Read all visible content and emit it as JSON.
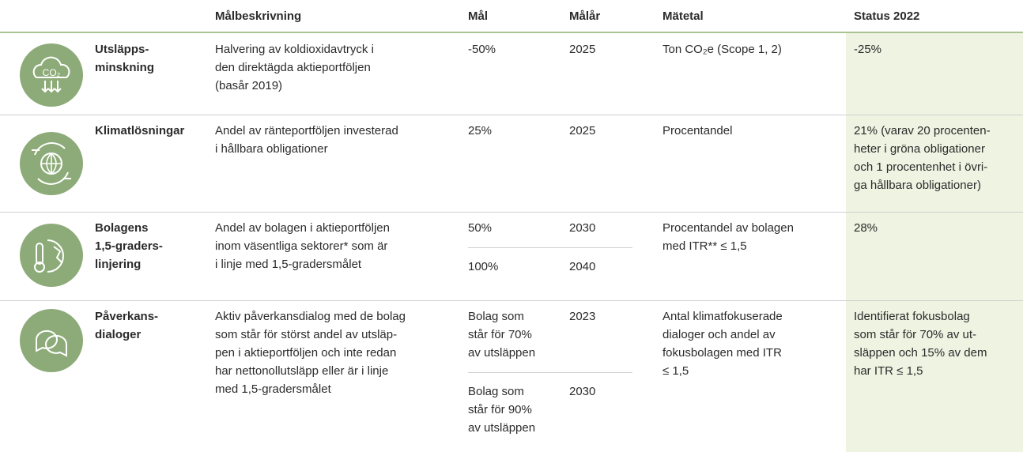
{
  "table": {
    "header": [
      "Målbeskrivning",
      "Mål",
      "Målår",
      "Mätetal",
      "Status 2022"
    ],
    "rows": [
      {
        "name": [
          "Utsläpps-",
          "minskning"
        ],
        "description": [
          "Halvering av koldioxidavtryck i",
          "den direktägda aktieportföljen",
          "(basår 2019)"
        ],
        "goals": [
          {
            "target": [
              "-50%"
            ],
            "year": "2025"
          }
        ],
        "metric": [
          "Ton CO₂e (Scope 1, 2)"
        ],
        "status": [
          "-25%"
        ]
      },
      {
        "name": [
          "Klimatlösningar"
        ],
        "description": [
          "Andel av ränteportföljen investerad",
          "i hållbara obligationer"
        ],
        "goals": [
          {
            "target": [
              "25%"
            ],
            "year": "2025"
          }
        ],
        "metric": [
          "Procentandel"
        ],
        "status": [
          "21% (varav 20 procenten-",
          "heter i gröna obligationer",
          "och 1 procentenhet i övri-",
          "ga hållbara obligationer)"
        ]
      },
      {
        "name": [
          "Bolagens",
          "1,5-graders-",
          "linjering"
        ],
        "description": [
          "Andel av bolagen i aktieportföljen",
          "inom väsentliga sektorer* som är",
          "i linje med 1,5-gradersmålet"
        ],
        "goals": [
          {
            "target": [
              "50%"
            ],
            "year": "2030"
          },
          {
            "target": [
              "100%"
            ],
            "year": "2040"
          }
        ],
        "metric": [
          "Procentandel av bolagen",
          "med ITR** ≤ 1,5"
        ],
        "status": [
          "28%"
        ]
      },
      {
        "name": [
          "Påverkans-",
          "dialoger"
        ],
        "description": [
          "Aktiv påverkansdialog med de bolag",
          "som står för störst andel av utsläp-",
          "pen i aktieportföljen och inte redan",
          "har nettonollutsläpp eller är i linje",
          "med 1,5-gradersmålet"
        ],
        "goals": [
          {
            "target": [
              "Bolag som",
              "står för 70%",
              "av utsläppen"
            ],
            "year": "2023"
          },
          {
            "target": [
              "Bolag som",
              "står för 90%",
              "av utsläppen"
            ],
            "year": "2030"
          }
        ],
        "metric": [
          "Antal klimatfokuserade",
          "dialoger och andel av",
          "fokusbolagen med ITR",
          "≤ 1,5"
        ],
        "status": [
          "Identifierat fokusbolag",
          "som står för 70% av ut-",
          "släppen och 15% av dem",
          "har ITR ≤ 1,5"
        ]
      }
    ]
  }
}
